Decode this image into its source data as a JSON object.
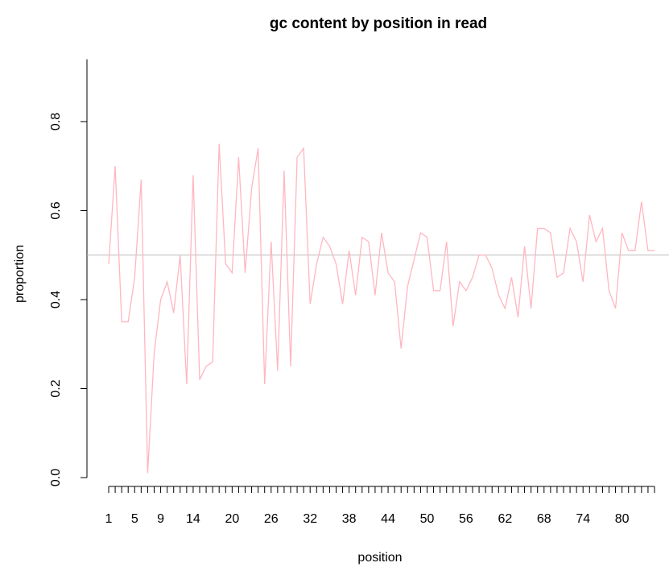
{
  "chart_data": {
    "type": "line",
    "title": "gc content by position in read",
    "xlabel": "position",
    "ylabel": "proportion",
    "categories": [
      1,
      null,
      null,
      null,
      5,
      null,
      null,
      null,
      9,
      null,
      null,
      null,
      null,
      14,
      null,
      null,
      null,
      null,
      null,
      20,
      null,
      null,
      null,
      null,
      null,
      26,
      null,
      null,
      null,
      null,
      null,
      32,
      null,
      null,
      null,
      null,
      null,
      38,
      null,
      null,
      null,
      null,
      null,
      44,
      null,
      null,
      null,
      null,
      null,
      50,
      null,
      null,
      null,
      null,
      null,
      56,
      null,
      null,
      null,
      null,
      null,
      62,
      null,
      null,
      null,
      null,
      null,
      68,
      null,
      null,
      null,
      null,
      null,
      74,
      null,
      null,
      null,
      null,
      null,
      80,
      null,
      null,
      null,
      null,
      null
    ],
    "series": [
      {
        "name": "gc",
        "color": "#ffb6c1",
        "values": [
          0.48,
          0.7,
          0.35,
          0.35,
          0.45,
          0.67,
          0.01,
          0.28,
          0.4,
          0.44,
          0.37,
          0.5,
          0.21,
          0.68,
          0.22,
          0.25,
          0.26,
          0.75,
          0.48,
          0.46,
          0.72,
          0.46,
          0.65,
          0.74,
          0.21,
          0.53,
          0.24,
          0.69,
          0.25,
          0.72,
          0.74,
          0.39,
          0.48,
          0.54,
          0.52,
          0.48,
          0.39,
          0.51,
          0.41,
          0.54,
          0.53,
          0.41,
          0.55,
          0.46,
          0.44,
          0.29,
          0.43,
          0.49,
          0.55,
          0.54,
          0.42,
          0.42,
          0.53,
          0.34,
          0.44,
          0.42,
          0.45,
          0.5,
          0.5,
          0.47,
          0.41,
          0.38,
          0.45,
          0.36,
          0.52,
          0.38,
          0.56,
          0.56,
          0.55,
          0.45,
          0.46,
          0.56,
          0.53,
          0.44,
          0.59,
          0.53,
          0.56,
          0.42,
          0.38,
          0.55,
          0.51,
          0.51,
          0.62,
          0.51,
          0.51
        ]
      }
    ],
    "reference_line": {
      "value": 0.5,
      "color": "#bebebe"
    },
    "ylim": [
      0,
      0.94
    ],
    "yticks": [
      {
        "value": 0,
        "label": "0.0"
      },
      0.2,
      0.4,
      0.6,
      0.8
    ]
  }
}
